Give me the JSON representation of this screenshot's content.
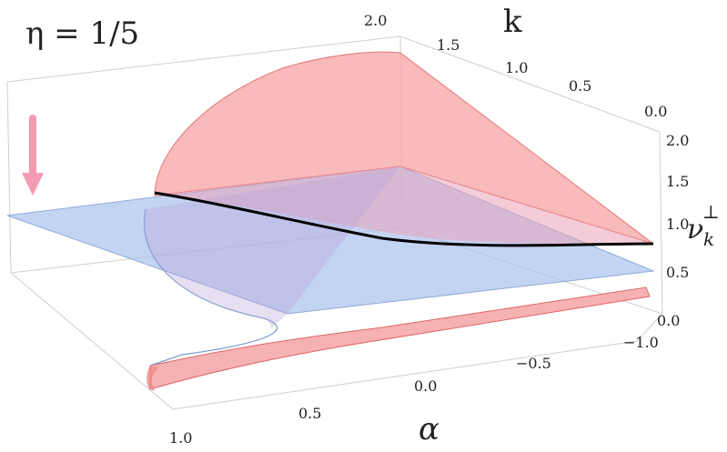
{
  "chart_data": {
    "type": "surface",
    "title": "η = 1/5",
    "axes": {
      "x": {
        "label": "α",
        "ticks": [
          "1.0",
          "0.5",
          "0.0",
          "−0.5",
          "−1.0"
        ],
        "range": [
          -1.0,
          1.0
        ]
      },
      "y": {
        "label": "k",
        "ticks": [
          "0.0",
          "0.5",
          "1.0",
          "1.5",
          "2.0"
        ],
        "range": [
          0.0,
          2.0
        ]
      },
      "z": {
        "label": "ν",
        "sub": "k",
        "sup": "⊥",
        "ticks": [
          "0.0",
          "0.5",
          "1.0",
          "1.5",
          "2.0"
        ],
        "range": [
          0.0,
          2.0
        ]
      }
    },
    "series": [
      {
        "color": "#f08a8a",
        "description": "red surface"
      },
      {
        "color": "#9db8e8",
        "description": "blue plane at ν ≈ 1"
      }
    ],
    "curve_color": "#000000",
    "annotation_arrow_color": "#f49ab2",
    "box_frame": true
  }
}
